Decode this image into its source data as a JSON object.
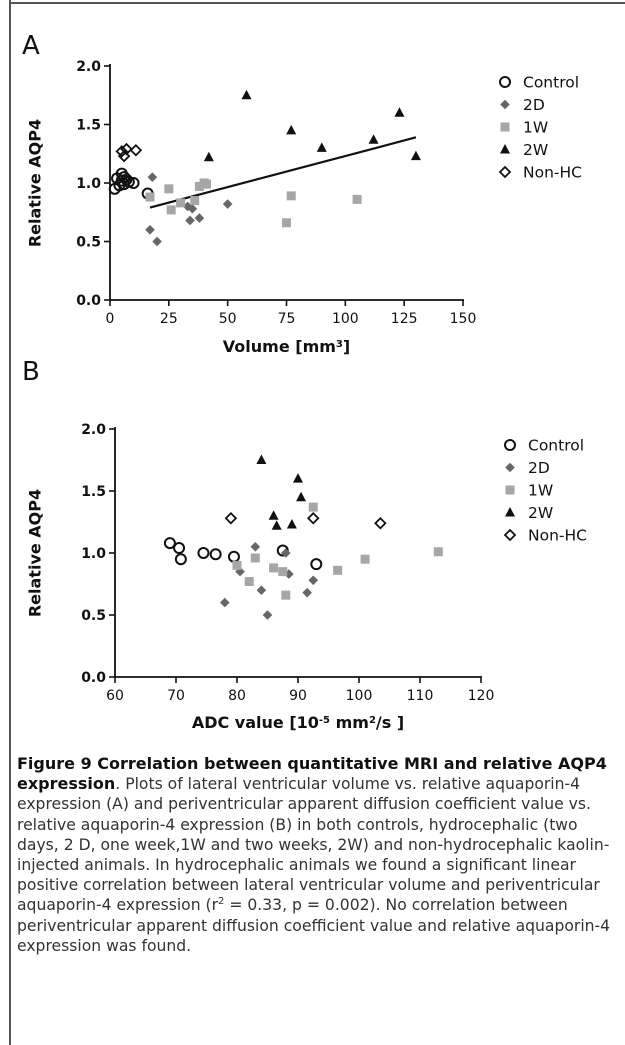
{
  "panels": [
    {
      "label": "A",
      "chart_data": {
        "type": "scatter",
        "xlabel": "Volume [mm³]",
        "ylabel": "Relative AQP4",
        "xlim": [
          0,
          150
        ],
        "ylim": [
          0,
          2
        ],
        "xticks": [
          "0",
          "25",
          "50",
          "75",
          "100",
          "125",
          "150"
        ],
        "yticks": [
          "0.0",
          "0.5",
          "1.0",
          "1.5",
          "2.0"
        ],
        "legend_position": "right",
        "series": [
          {
            "name": "Control",
            "marker": "circle-open",
            "color": "#111111",
            "points": [
              [
                2,
                0.95
              ],
              [
                3,
                1.04
              ],
              [
                4,
                0.98
              ],
              [
                5,
                1.02
              ],
              [
                5,
                1.08
              ],
              [
                6,
                1.05
              ],
              [
                6,
                0.99
              ],
              [
                7,
                1.03
              ],
              [
                8,
                1.01
              ],
              [
                10,
                1.0
              ],
              [
                16,
                0.91
              ]
            ]
          },
          {
            "name": "2D",
            "marker": "diamond",
            "color": "#666666",
            "points": [
              [
                17,
                0.6
              ],
              [
                18,
                1.05
              ],
              [
                20,
                0.5
              ],
              [
                33,
                0.8
              ],
              [
                34,
                0.68
              ],
              [
                35,
                0.78
              ],
              [
                38,
                0.7
              ],
              [
                50,
                0.82
              ]
            ]
          },
          {
            "name": "1W",
            "marker": "square",
            "color": "#a6a6a6",
            "points": [
              [
                17,
                0.88
              ],
              [
                25,
                0.95
              ],
              [
                26,
                0.77
              ],
              [
                30,
                0.83
              ],
              [
                36,
                0.85
              ],
              [
                38,
                0.97
              ],
              [
                40,
                1.0
              ],
              [
                41,
                0.99
              ],
              [
                75,
                0.66
              ],
              [
                77,
                0.89
              ],
              [
                105,
                0.86
              ]
            ]
          },
          {
            "name": "2W",
            "marker": "triangle",
            "color": "#111111",
            "points": [
              [
                42,
                1.22
              ],
              [
                58,
                1.75
              ],
              [
                77,
                1.45
              ],
              [
                90,
                1.3
              ],
              [
                112,
                1.37
              ],
              [
                123,
                1.6
              ],
              [
                130,
                1.23
              ]
            ]
          },
          {
            "name": "Non-HC",
            "marker": "diamond-open",
            "color": "#111111",
            "points": [
              [
                5,
                1.27
              ],
              [
                6,
                1.23
              ],
              [
                7,
                1.29
              ],
              [
                11,
                1.28
              ]
            ]
          }
        ],
        "regression_line": {
          "x": [
            17,
            130
          ],
          "y": [
            0.79,
            1.39
          ]
        }
      }
    },
    {
      "label": "B",
      "chart_data": {
        "type": "scatter",
        "xlabel": "ADC value [10⁻⁵ mm²/s ]",
        "ylabel": "Relative AQP4",
        "xlim": [
          60,
          120
        ],
        "ylim": [
          0,
          2
        ],
        "xticks": [
          "60",
          "70",
          "80",
          "90",
          "100",
          "110",
          "120"
        ],
        "yticks": [
          "0.0",
          "0.5",
          "1.0",
          "1.5",
          "2.0"
        ],
        "legend_position": "right",
        "series": [
          {
            "name": "Control",
            "marker": "circle-open",
            "color": "#111111",
            "points": [
              [
                69,
                1.08
              ],
              [
                70.5,
                1.04
              ],
              [
                70.8,
                0.95
              ],
              [
                74.5,
                1.0
              ],
              [
                76.5,
                0.99
              ],
              [
                79.5,
                0.97
              ],
              [
                87.5,
                1.02
              ],
              [
                93,
                0.91
              ]
            ]
          },
          {
            "name": "2D",
            "marker": "diamond",
            "color": "#666666",
            "points": [
              [
                78,
                0.6
              ],
              [
                80.5,
                0.85
              ],
              [
                83,
                1.05
              ],
              [
                84,
                0.7
              ],
              [
                85,
                0.5
              ],
              [
                88,
                1.0
              ],
              [
                88.5,
                0.83
              ],
              [
                91.5,
                0.68
              ],
              [
                92.5,
                0.78
              ]
            ]
          },
          {
            "name": "1W",
            "marker": "square",
            "color": "#a6a6a6",
            "points": [
              [
                80,
                0.9
              ],
              [
                82,
                0.77
              ],
              [
                83,
                0.96
              ],
              [
                86,
                0.88
              ],
              [
                87.5,
                0.85
              ],
              [
                88,
                0.66
              ],
              [
                92.5,
                1.37
              ],
              [
                96.5,
                0.86
              ],
              [
                101,
                0.95
              ],
              [
                113,
                1.01
              ]
            ]
          },
          {
            "name": "2W",
            "marker": "triangle",
            "color": "#111111",
            "points": [
              [
                84,
                1.75
              ],
              [
                86,
                1.3
              ],
              [
                86.5,
                1.22
              ],
              [
                89,
                1.23
              ],
              [
                90,
                1.6
              ],
              [
                90.5,
                1.45
              ]
            ]
          },
          {
            "name": "Non-HC",
            "marker": "diamond-open",
            "color": "#111111",
            "points": [
              [
                79,
                1.28
              ],
              [
                92.5,
                1.28
              ],
              [
                103.5,
                1.24
              ]
            ]
          }
        ]
      }
    }
  ],
  "caption": {
    "title": "Figure 9 Correlation between quantitative MRI and relative AQP4 expression",
    "body_1": ". Plots of lateral ventricular volume vs. relative aquaporin-4 expression (A) and periventricular apparent diffusion coefficient value vs. relative aquaporin-4 expression (B) in both controls, hydrocephalic (two days, 2 D, one week,1W and two weeks, 2W) and non-hydrocephalic kaolin-injected animals. In hydrocephalic animals we found a significant linear positive correlation between lateral ventricular volume and periventricular aquaporin-4 expression (r",
    "sup": "2",
    "body_2": " = 0.33, p = 0.002). No correlation between periventricular apparent diffusion coefficient value and relative aquaporin-4 expression was found."
  }
}
